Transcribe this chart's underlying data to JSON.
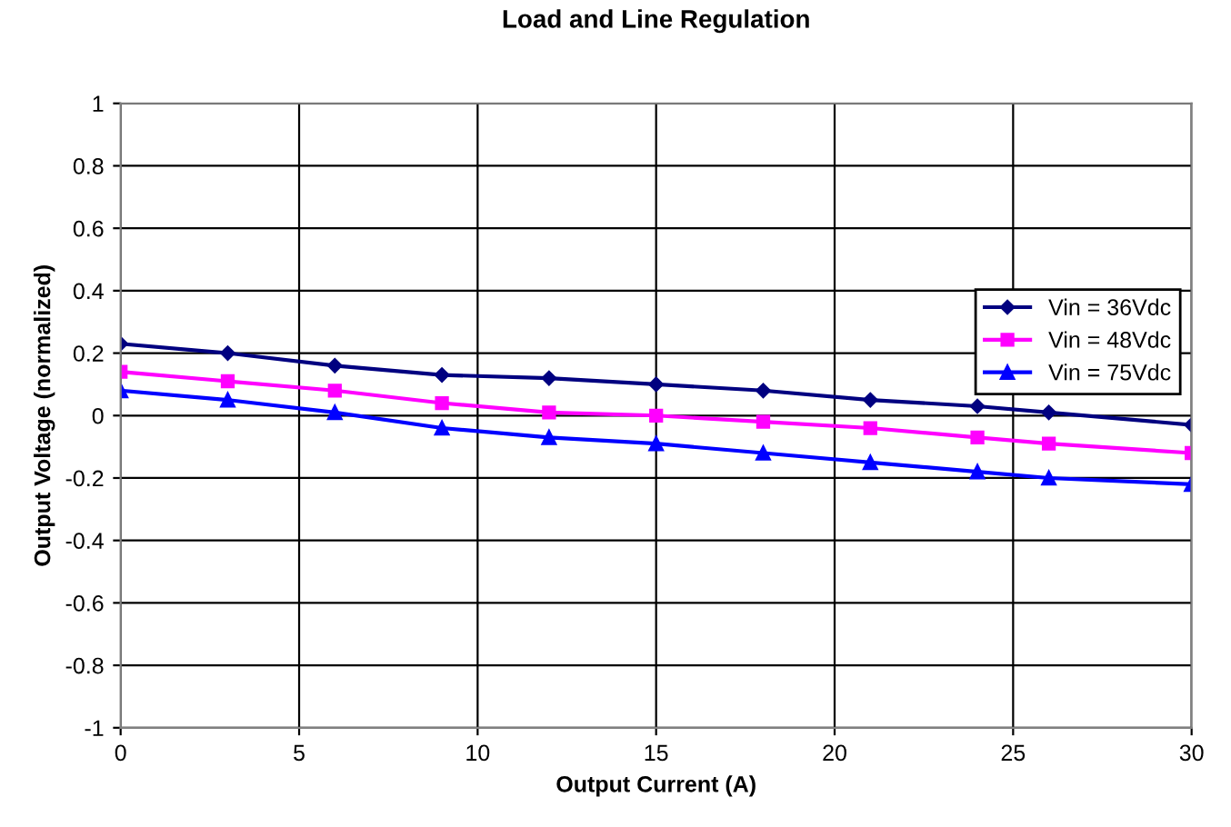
{
  "chart_data": {
    "type": "line",
    "title": "Load and Line Regulation",
    "xlabel": "Output Current (A)",
    "ylabel": "Output Voltage (normalized)",
    "x": [
      0,
      3,
      6,
      9,
      12,
      15,
      18,
      21,
      24,
      26,
      30
    ],
    "series": [
      {
        "name": "Vin = 36Vdc",
        "color": "#000080",
        "marker": "diamond",
        "values": [
          0.23,
          0.2,
          0.16,
          0.13,
          0.12,
          0.1,
          0.08,
          0.05,
          0.03,
          0.01,
          -0.03
        ]
      },
      {
        "name": "Vin = 48Vdc",
        "color": "#ff00ff",
        "marker": "square",
        "values": [
          0.14,
          0.11,
          0.08,
          0.04,
          0.01,
          0.0,
          -0.02,
          -0.04,
          -0.07,
          -0.09,
          -0.12
        ]
      },
      {
        "name": "Vin = 75Vdc",
        "color": "#0000ff",
        "marker": "triangle",
        "values": [
          0.08,
          0.05,
          0.01,
          -0.04,
          -0.07,
          -0.09,
          -0.12,
          -0.15,
          -0.18,
          -0.2,
          -0.22
        ]
      }
    ],
    "xlim": [
      0,
      30
    ],
    "xticks": [
      0,
      5,
      10,
      15,
      20,
      25,
      30
    ],
    "ylim": [
      -1,
      1
    ],
    "yticks": [
      -1,
      -0.8,
      -0.6,
      -0.4,
      -0.2,
      0,
      0.2,
      0.4,
      0.6,
      0.8,
      1
    ],
    "grid": true,
    "legend": "right",
    "line_style": "solid"
  }
}
